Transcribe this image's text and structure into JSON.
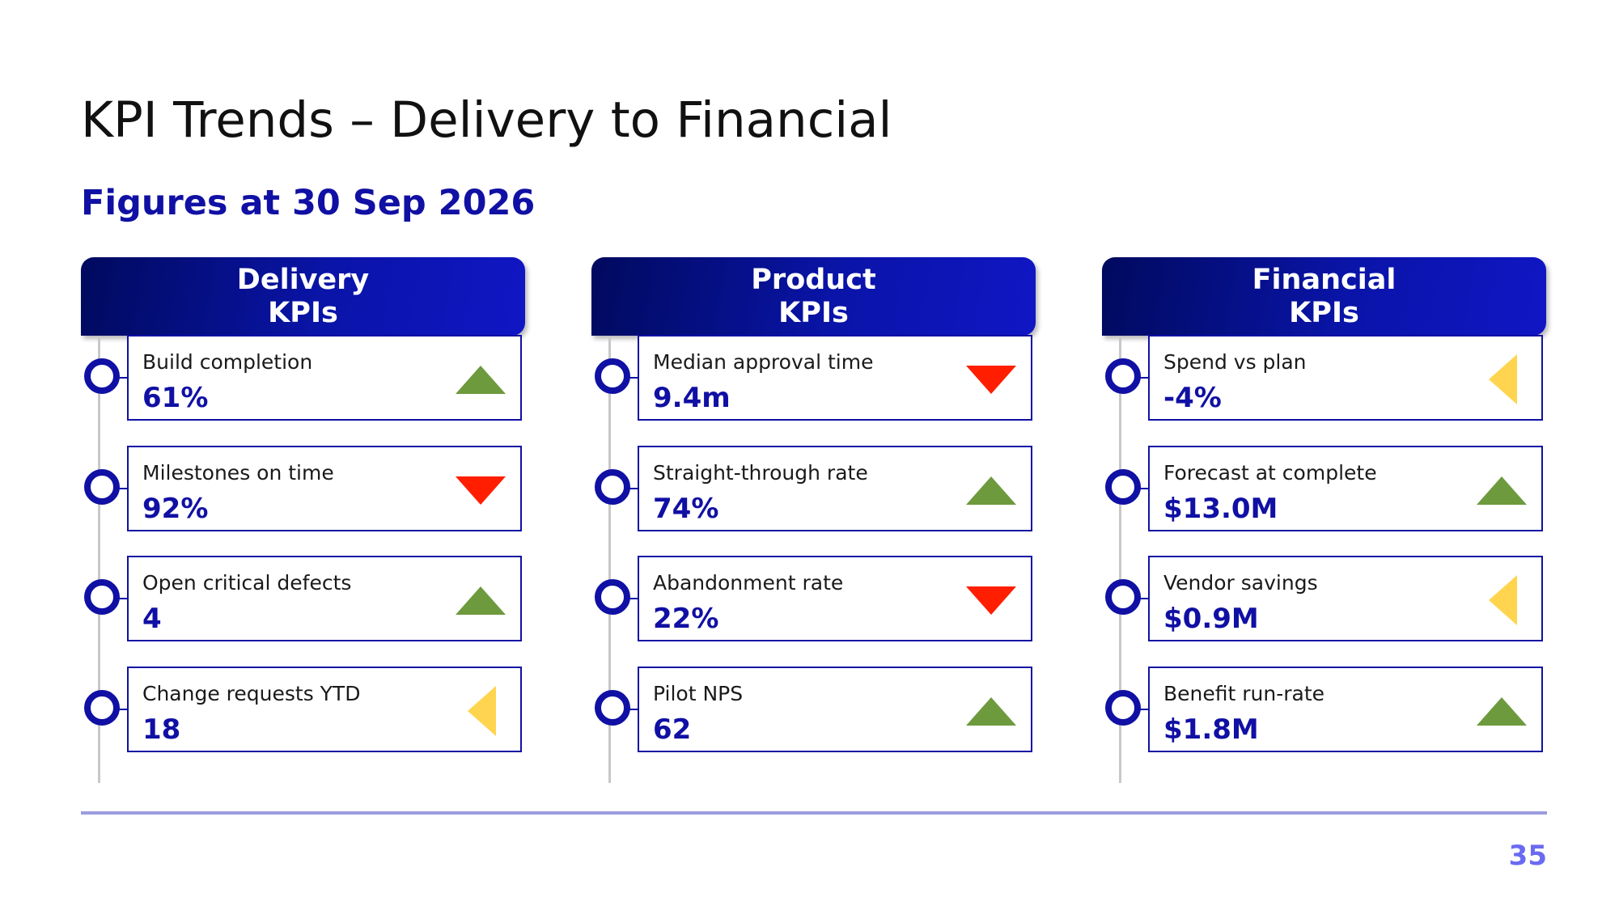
{
  "slide": {
    "title": "KPI Trends – Delivery to Financial",
    "subtitle": "Figures at 30 Sep 2026",
    "page_number": "35"
  },
  "trend_colors": {
    "up": "#6e9a3e",
    "down": "#ff1f00",
    "flat": "#ffd54f"
  },
  "columns": [
    {
      "header_line1": "Delivery",
      "header_line2": "KPIs",
      "kpis": [
        {
          "label": "Build completion",
          "value": "61%",
          "trend": "up"
        },
        {
          "label": "Milestones on time",
          "value": "92%",
          "trend": "down"
        },
        {
          "label": "Open critical defects",
          "value": "4",
          "trend": "up"
        },
        {
          "label": "Change requests YTD",
          "value": "18",
          "trend": "flat"
        }
      ]
    },
    {
      "header_line1": "Product",
      "header_line2": "KPIs",
      "kpis": [
        {
          "label": "Median approval time",
          "value": "9.4m",
          "trend": "down"
        },
        {
          "label": "Straight-through rate",
          "value": "74%",
          "trend": "up"
        },
        {
          "label": "Abandonment rate",
          "value": "22%",
          "trend": "down"
        },
        {
          "label": "Pilot NPS",
          "value": "62",
          "trend": "up"
        }
      ]
    },
    {
      "header_line1": "Financial",
      "header_line2": "KPIs",
      "kpis": [
        {
          "label": "Spend vs plan",
          "value": "-4%",
          "trend": "flat"
        },
        {
          "label": "Forecast at complete",
          "value": "$13.0M",
          "trend": "up"
        },
        {
          "label": "Vendor savings",
          "value": "$0.9M",
          "trend": "flat"
        },
        {
          "label": "Benefit run-rate",
          "value": "$1.8M",
          "trend": "up"
        }
      ]
    }
  ]
}
